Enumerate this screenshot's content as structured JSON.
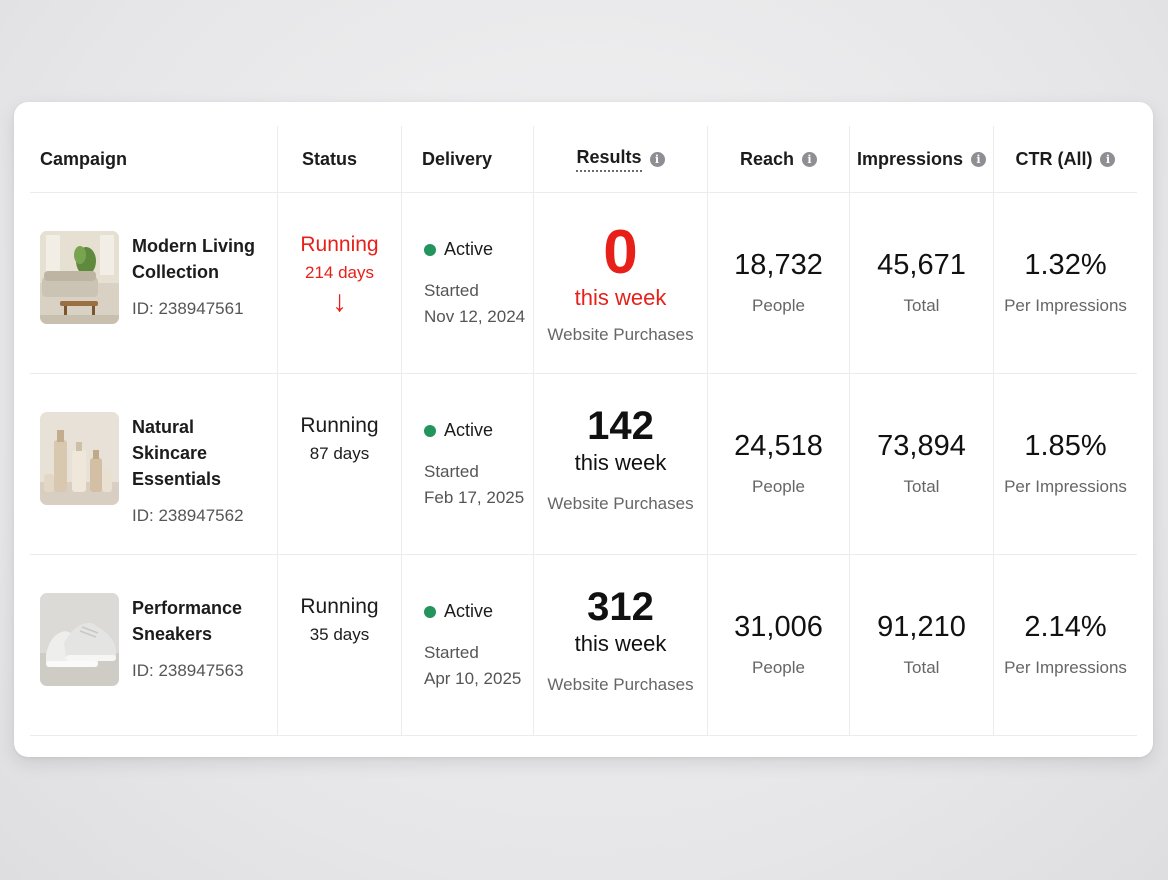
{
  "headers": {
    "campaign": "Campaign",
    "status": "Status",
    "delivery": "Delivery",
    "results": "Results",
    "reach": "Reach",
    "impressions": "Impressions",
    "ctr": "CTR (All)",
    "info_glyph": "i"
  },
  "icons": {
    "info": "info-icon",
    "status_dot": "green-dot-icon",
    "alert_arrow": "arrow-down-icon"
  },
  "colors": {
    "alert_red": "#e8201a",
    "active_green": "#22945c"
  },
  "rows": [
    {
      "name_line1": "Modern Living",
      "name_line2": "Collection",
      "id": "ID: 238947561",
      "status": "Running",
      "days": "214 days",
      "alert": true,
      "arrow": "↓",
      "delivery": "Active",
      "started_label": "Started",
      "started_date": "Nov 12, 2024",
      "results": "0",
      "results_period": "this week",
      "results_type": "Website Purchases",
      "reach": "18,732",
      "reach_sub": "People",
      "impressions": "45,671",
      "impressions_sub": "Total",
      "ctr": "1.32%",
      "ctr_sub": "Per Impressions"
    },
    {
      "name_line1": "Natural Skincare",
      "name_line2": "Essentials",
      "id": "ID: 238947562",
      "status": "Running",
      "days": "87 days",
      "alert": false,
      "delivery": "Active",
      "started_label": "Started",
      "started_date": "Feb 17, 2025",
      "results": "142",
      "results_period": "this week",
      "results_type": "Website Purchases",
      "reach": "24,518",
      "reach_sub": "People",
      "impressions": "73,894",
      "impressions_sub": "Total",
      "ctr": "1.85%",
      "ctr_sub": "Per Impressions"
    },
    {
      "name_line1": "Performance",
      "name_line2": "Sneakers",
      "id": "ID: 238947563",
      "status": "Running",
      "days": "35 days",
      "alert": false,
      "delivery": "Active",
      "started_label": "Started",
      "started_date": "Apr 10, 2025",
      "results": "312",
      "results_period": "this week",
      "results_type": "Website Purchases",
      "reach": "31,006",
      "reach_sub": "People",
      "impressions": "91,210",
      "impressions_sub": "Total",
      "ctr": "2.14%",
      "ctr_sub": "Per Impressions"
    }
  ]
}
